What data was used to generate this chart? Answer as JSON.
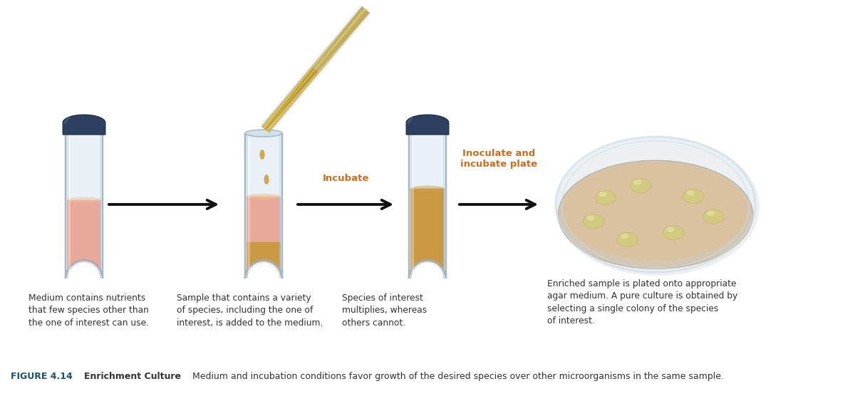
{
  "bg_color": "#ffffff",
  "fig_width": 12.0,
  "fig_height": 5.77,
  "title_bold": "FIGURE 4.14",
  "title_bold_color": "#1a5276",
  "title_label": "Enrichment Culture",
  "caption_text": "  Medium and incubation conditions favor growth of the desired species over other microorganisms in the same sample.",
  "caption_color": "#333333",
  "caption_fontsize": 9.0,
  "arrow_label_color": "#c87020",
  "arrow_label_fontsize": 9.5,
  "arrow_labels": [
    "Incubate",
    "Inoculate and\nincubate plate"
  ],
  "tube_cap_color": "#2e4060",
  "tube1_liquid_color": "#e8a090",
  "tube2_liquid_color_top": "#e8a090",
  "tube2_liquid_color_bottom": "#c89030",
  "tube3_liquid_color": "#c89030",
  "plate_fill_color": "#d4a574",
  "colony_color": "#d4c060",
  "description_color": "#333333",
  "description_fontsize": 8.8,
  "desc1": "Medium contains nutrients\nthat few species other than\nthe one of interest can use.",
  "desc2": "Sample that contains a variety\nof species, including the one of\ninterest, is added to the medium.",
  "desc3": "Species of interest\nmultiplies, whereas\nothers cannot.",
  "desc4": "Enriched sample is plated onto appropriate\nagar medium. A pure culture is obtained by\nselecting a single colony of the species\nof interest."
}
